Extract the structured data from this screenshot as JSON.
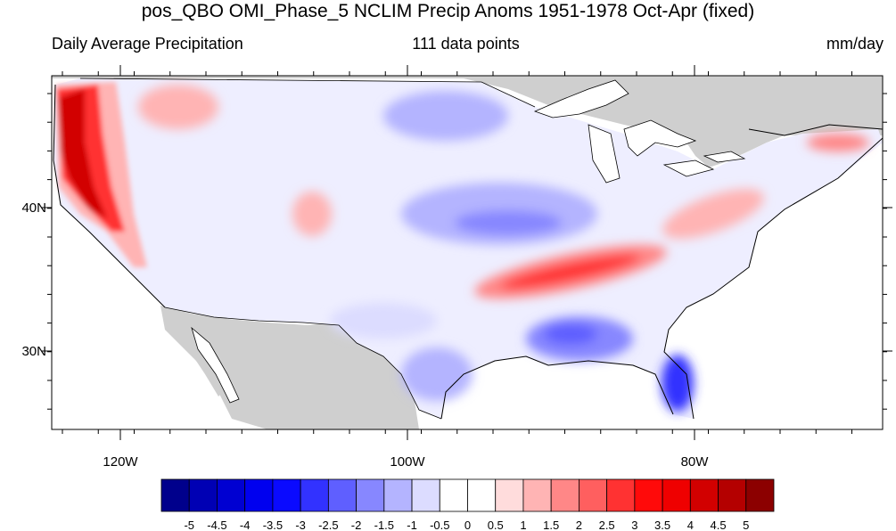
{
  "title": "pos_QBO OMI_Phase_5 NCLIM Precip Anoms 1951-1978 Oct-Apr (fixed)",
  "subtitle_left": "Daily Average Precipitation",
  "subtitle_center": "111 data points",
  "subtitle_right": "mm/day",
  "axes": {
    "lon_labels": [
      "120W",
      "100W",
      "80W"
    ],
    "lat_labels": [
      "40N",
      "30N"
    ]
  },
  "colorbar": {
    "labels": [
      "-5",
      "-4.5",
      "-4",
      "-3.5",
      "-3",
      "-2.5",
      "-2",
      "-1.5",
      "-1",
      "-0.5",
      "0",
      "0.5",
      "1",
      "1.5",
      "2",
      "2.5",
      "3",
      "3.5",
      "4",
      "4.5",
      "5"
    ],
    "colors": [
      "#00008c",
      "#0000b4",
      "#0000d2",
      "#0000ef",
      "#0a0aff",
      "#3232ff",
      "#5f5fff",
      "#8787ff",
      "#b4b4ff",
      "#dcdcff",
      "#ffffff",
      "#ffffff",
      "#ffdcdc",
      "#ffb4b4",
      "#ff8787",
      "#ff5f5f",
      "#ff3232",
      "#ff0a0a",
      "#ef0000",
      "#d20000",
      "#b40000",
      "#8c0000"
    ]
  },
  "colors": {
    "land_mask": "#cfcfcf",
    "ocean": "#ffffff",
    "coast": "#000000"
  }
}
